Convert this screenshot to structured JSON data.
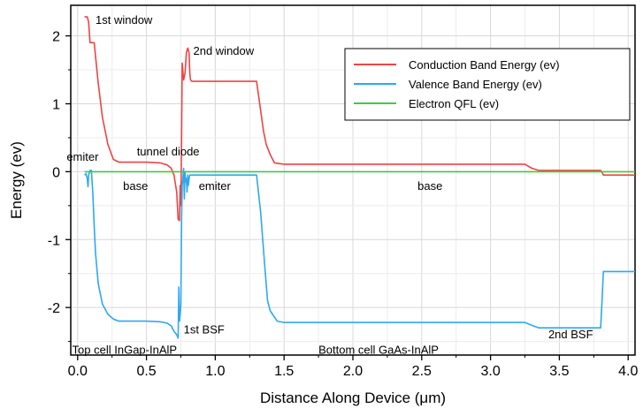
{
  "chart_data": {
    "type": "line",
    "title": "",
    "xlabel": "Distance Along Device (μm)",
    "ylabel": "Energy (ev)",
    "xlim": [
      -0.05,
      4.05
    ],
    "ylim": [
      -2.7,
      2.45
    ],
    "x_ticks": [
      0.0,
      0.5,
      1.0,
      1.5,
      2.0,
      2.5,
      3.0,
      3.5,
      4.0
    ],
    "x_tick_labels": [
      "0.0",
      "0.5",
      "1.0",
      "1.5",
      "2.0",
      "2.5",
      "3.0",
      "3.5",
      "4.0"
    ],
    "y_ticks": [
      2,
      1,
      0,
      -1,
      -2
    ],
    "y_tick_labels": [
      "2",
      "1",
      "0",
      "-1",
      "-2"
    ],
    "grid": true,
    "legend_position": "top-right",
    "series": [
      {
        "name": "Conduction Band Energy (ev)",
        "color": "#ee4444",
        "x": [
          0.05,
          0.07,
          0.08,
          0.09,
          0.1,
          0.12,
          0.13,
          0.15,
          0.18,
          0.22,
          0.26,
          0.3,
          0.4,
          0.5,
          0.6,
          0.65,
          0.68,
          0.7,
          0.72,
          0.73,
          0.74,
          0.745,
          0.75,
          0.755,
          0.76,
          0.77,
          0.78,
          0.79,
          0.8,
          0.81,
          0.815,
          0.82,
          0.83,
          0.9,
          1.0,
          1.1,
          1.2,
          1.3,
          1.33,
          1.35,
          1.37,
          1.4,
          1.43,
          1.5,
          2.0,
          2.5,
          3.0,
          3.25,
          3.3,
          3.35,
          3.5,
          3.8,
          3.81,
          3.82,
          4.05
        ],
        "y": [
          2.28,
          2.28,
          2.2,
          1.9,
          1.9,
          1.9,
          1.7,
          1.3,
          0.8,
          0.4,
          0.18,
          0.14,
          0.14,
          0.14,
          0.13,
          0.1,
          0.05,
          -0.05,
          -0.3,
          -0.7,
          -0.72,
          -0.2,
          -0.5,
          0.5,
          1.6,
          1.35,
          1.45,
          1.75,
          1.82,
          1.75,
          1.45,
          1.35,
          1.33,
          1.33,
          1.33,
          1.33,
          1.33,
          1.33,
          0.9,
          0.6,
          0.4,
          0.25,
          0.13,
          0.11,
          0.11,
          0.11,
          0.11,
          0.11,
          0.05,
          0.02,
          0.02,
          0.02,
          -0.01,
          -0.05,
          -0.05
        ]
      },
      {
        "name": "Valence Band Energy (ev)",
        "color": "#2fa8f0",
        "x": [
          0.05,
          0.06,
          0.07,
          0.075,
          0.08,
          0.09,
          0.1,
          0.11,
          0.12,
          0.13,
          0.15,
          0.18,
          0.22,
          0.26,
          0.3,
          0.4,
          0.5,
          0.6,
          0.65,
          0.68,
          0.7,
          0.72,
          0.73,
          0.735,
          0.74,
          0.745,
          0.75,
          0.755,
          0.76,
          0.765,
          0.77,
          0.775,
          0.78,
          0.785,
          0.79,
          0.795,
          0.8,
          0.805,
          0.81,
          0.815,
          0.82,
          0.83,
          0.9,
          1.0,
          1.1,
          1.2,
          1.3,
          1.33,
          1.36,
          1.38,
          1.4,
          1.45,
          1.5,
          2.0,
          2.5,
          3.0,
          3.25,
          3.3,
          3.35,
          3.5,
          3.8,
          3.81,
          3.82,
          4.05
        ],
        "y": [
          -0.05,
          -0.03,
          -0.1,
          -0.22,
          -0.05,
          0.02,
          0.02,
          -0.3,
          -0.8,
          -1.2,
          -1.65,
          -1.95,
          -2.1,
          -2.17,
          -2.2,
          -2.2,
          -2.2,
          -2.21,
          -2.23,
          -2.27,
          -2.35,
          -2.4,
          -2.45,
          -1.7,
          -2.2,
          -2.1,
          -1.95,
          -0.7,
          -0.2,
          -0.1,
          0.05,
          -0.4,
          0.0,
          -0.15,
          -0.1,
          -0.3,
          -0.05,
          -0.2,
          -0.1,
          -0.05,
          -0.05,
          -0.05,
          -0.05,
          -0.05,
          -0.05,
          -0.05,
          -0.05,
          -0.6,
          -1.4,
          -1.9,
          -2.05,
          -2.2,
          -2.22,
          -2.22,
          -2.22,
          -2.22,
          -2.22,
          -2.26,
          -2.3,
          -2.3,
          -2.3,
          -1.9,
          -1.47,
          -1.47
        ]
      },
      {
        "name": "Electron QFL (ev)",
        "color": "#3ccc3c",
        "x": [
          0.05,
          4.05
        ],
        "y": [
          0.0,
          0.0
        ]
      }
    ],
    "annotations": [
      {
        "text": "1st window",
        "x": 0.13,
        "y": 2.18
      },
      {
        "text": "2nd window",
        "x": 0.84,
        "y": 1.72
      },
      {
        "text": "emiter",
        "x": -0.08,
        "y": 0.16
      },
      {
        "text": "tunnel diode",
        "x": 0.43,
        "y": 0.24
      },
      {
        "text": "base",
        "x": 0.33,
        "y": -0.27
      },
      {
        "text": "emiter",
        "x": 0.88,
        "y": -0.27
      },
      {
        "text": "base",
        "x": 2.47,
        "y": -0.27
      },
      {
        "text": "1st BSF",
        "x": 0.77,
        "y": -2.38
      },
      {
        "text": "2nd BSF",
        "x": 3.42,
        "y": -2.45
      },
      {
        "text": "Top cell InGap-InAlP",
        "x": -0.04,
        "y": -2.68
      },
      {
        "text": "Bottom cell GaAs-InAlP",
        "x": 1.75,
        "y": -2.68
      }
    ]
  }
}
